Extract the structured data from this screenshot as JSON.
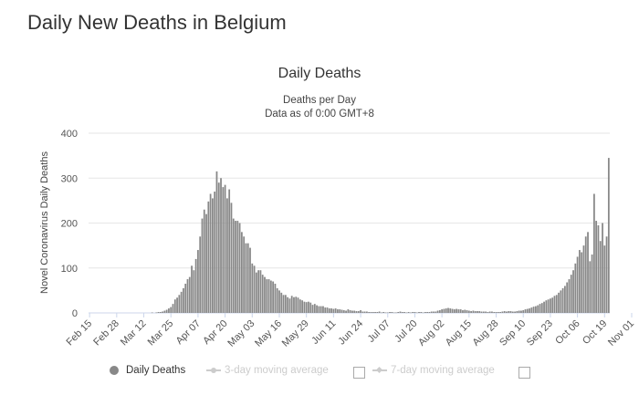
{
  "page": {
    "title": "Daily New Deaths in Belgium"
  },
  "legend": {
    "items": [
      {
        "label": "Daily Deaths",
        "color": "#888888",
        "active": true
      },
      {
        "label": "3-day moving average",
        "color": "#cccccc",
        "active": false
      },
      {
        "label": "7-day moving average",
        "color": "#cccccc",
        "active": false
      }
    ]
  },
  "chart_data": {
    "type": "bar",
    "title": "Daily Deaths",
    "subtitle": "Deaths per Day",
    "subtitle2": "Data as of 0:00 GMT+8",
    "ylabel": "Novel Coronavirus Daily Deaths",
    "xlabel": "",
    "ylim": [
      0,
      400
    ],
    "yticks": [
      0,
      100,
      200,
      300,
      400
    ],
    "grid": true,
    "legend_position": "bottom",
    "bar_color": "#888888",
    "x_tick_labels": [
      "Feb 15",
      "Feb 28",
      "Mar 12",
      "Mar 25",
      "Apr 07",
      "Apr 20",
      "May 03",
      "May 16",
      "May 29",
      "Jun 11",
      "Jun 24",
      "Jul 07",
      "Jul 20",
      "Aug 02",
      "Aug 15",
      "Aug 28",
      "Sep 10",
      "Sep 23",
      "Oct 06",
      "Oct 19",
      "Nov 01"
    ],
    "start_date": "Feb 15",
    "series": [
      {
        "name": "Daily Deaths",
        "values": [
          0,
          0,
          0,
          0,
          0,
          0,
          0,
          0,
          0,
          0,
          0,
          0,
          0,
          0,
          0,
          0,
          0,
          0,
          0,
          0,
          0,
          0,
          0,
          0,
          0,
          0,
          0,
          0,
          0,
          0,
          1,
          0,
          1,
          2,
          2,
          3,
          5,
          7,
          10,
          13,
          20,
          30,
          34,
          40,
          47,
          55,
          65,
          75,
          80,
          105,
          95,
          120,
          140,
          170,
          210,
          230,
          220,
          248,
          265,
          255,
          270,
          315,
          290,
          300,
          280,
          285,
          255,
          275,
          245,
          210,
          205,
          205,
          200,
          180,
          170,
          155,
          155,
          145,
          110,
          105,
          90,
          95,
          95,
          85,
          80,
          75,
          75,
          72,
          70,
          65,
          55,
          50,
          45,
          40,
          40,
          35,
          32,
          38,
          35,
          36,
          34,
          30,
          28,
          25,
          24,
          25,
          23,
          18,
          20,
          17,
          15,
          15,
          15,
          12,
          12,
          10,
          10,
          9,
          10,
          8,
          8,
          7,
          6,
          5,
          8,
          6,
          5,
          5,
          4,
          4,
          6,
          3,
          3,
          3,
          2,
          2,
          2,
          2,
          2,
          3,
          1,
          2,
          1,
          1,
          2,
          2,
          1,
          1,
          2,
          3,
          2,
          2,
          1,
          2,
          1,
          2,
          2,
          1,
          2,
          2,
          1,
          2,
          2,
          2,
          3,
          3,
          3,
          5,
          6,
          8,
          9,
          10,
          11,
          10,
          9,
          8,
          9,
          8,
          8,
          6,
          7,
          6,
          5,
          4,
          5,
          4,
          4,
          4,
          3,
          3,
          3,
          2,
          3,
          3,
          2,
          2,
          2,
          2,
          3,
          4,
          3,
          4,
          4,
          3,
          3,
          4,
          5,
          5,
          6,
          8,
          9,
          10,
          12,
          14,
          15,
          17,
          20,
          22,
          25,
          28,
          30,
          32,
          34,
          38,
          40,
          45,
          50,
          55,
          60,
          68,
          75,
          85,
          95,
          110,
          125,
          140,
          135,
          150,
          170,
          180,
          115,
          130,
          265,
          205,
          195,
          160,
          200,
          150,
          170,
          345
        ]
      }
    ]
  }
}
